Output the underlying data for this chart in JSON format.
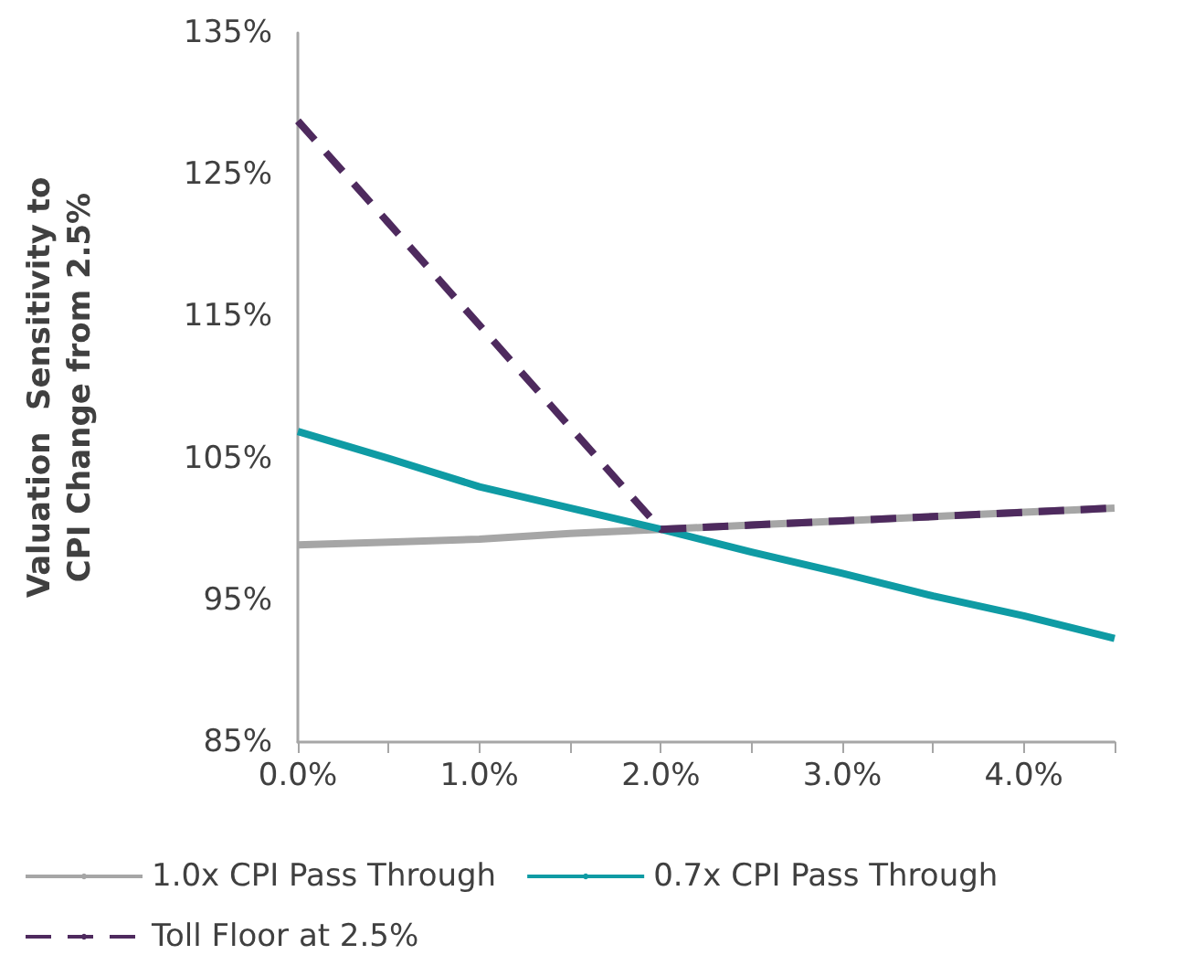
{
  "chart_data": {
    "type": "line",
    "ylabel": "Valuation  Sensitivity to\nCPI Change from 2.5%",
    "x": [
      0,
      0.5,
      1,
      1.5,
      2,
      2.5,
      3,
      3.5,
      4,
      4.5
    ],
    "series": [
      {
        "name": "1.0x CPI Pass Through",
        "color": "#a6a6a6",
        "line_style": "solid",
        "values": [
          98.9,
          99.1,
          99.3,
          99.7,
          100.0,
          100.3,
          100.6,
          100.9,
          101.2,
          101.5
        ]
      },
      {
        "name": "0.7x CPI Pass Through",
        "color": "#0f9ba4",
        "line_style": "solid",
        "values": [
          106.9,
          105.0,
          103.0,
          101.5,
          100.0,
          98.4,
          96.9,
          95.3,
          93.9,
          92.3
        ]
      },
      {
        "name": "Toll Floor at 2.5%",
        "color": "#4e2a5e",
        "line_style": "dashed",
        "values": [
          128.8,
          121.6,
          114.4,
          107.2,
          100.0,
          100.3,
          100.6,
          100.9,
          101.2,
          101.5
        ]
      }
    ],
    "xlim": [
      0,
      4.5
    ],
    "xticks": [
      {
        "value": 0,
        "label": "0.0%"
      },
      {
        "value": 0.5,
        "label": null
      },
      {
        "value": 1,
        "label": "1.0%"
      },
      {
        "value": 1.5,
        "label": null
      },
      {
        "value": 2,
        "label": "2.0%"
      },
      {
        "value": 2.5,
        "label": null
      },
      {
        "value": 3,
        "label": "3.0%"
      },
      {
        "value": 3.5,
        "label": null
      },
      {
        "value": 4,
        "label": "4.0%"
      },
      {
        "value": 4.5,
        "label": null
      }
    ],
    "ylim": [
      85,
      135
    ],
    "yticks": [
      {
        "value": 85,
        "label": "85%"
      },
      {
        "value": 95,
        "label": "95%"
      },
      {
        "value": 105,
        "label": "105%"
      },
      {
        "value": 115,
        "label": "115%"
      },
      {
        "value": 125,
        "label": "125%"
      },
      {
        "value": 135,
        "label": "135%"
      }
    ],
    "grid": false,
    "legend": "bottom",
    "marker": "none"
  }
}
